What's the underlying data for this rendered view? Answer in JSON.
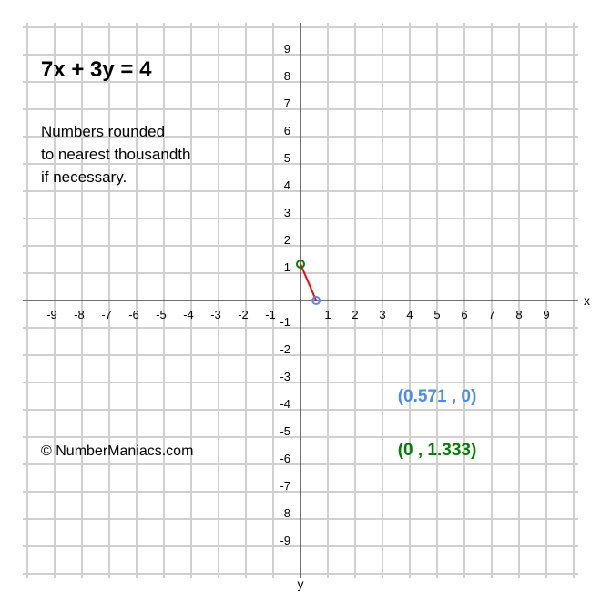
{
  "chart_data": {
    "type": "line",
    "title": "7x + 3y = 4",
    "note_lines": [
      "Numbers rounded",
      "to nearest thousandth",
      "if necessary."
    ],
    "copyright": "© NumberManiacs.com",
    "xlabel": "x",
    "ylabel": "y",
    "xlim": [
      -10,
      10
    ],
    "ylim": [
      -10,
      10
    ],
    "grid": true,
    "x_ticks": [
      "-9",
      "-8",
      "-7",
      "-6",
      "-5",
      "-4",
      "-3",
      "-2",
      "-1",
      "1",
      "2",
      "3",
      "4",
      "5",
      "6",
      "7",
      "8",
      "9"
    ],
    "y_ticks": [
      "9",
      "8",
      "7",
      "6",
      "5",
      "4",
      "3",
      "2",
      "1",
      "-1",
      "-2",
      "-3",
      "-4",
      "-5",
      "-6",
      "-7",
      "-8",
      "-9"
    ],
    "series": [
      {
        "points": [
          [
            0,
            1.333
          ],
          [
            0.571,
            0
          ]
        ],
        "color": "#ff0000"
      }
    ],
    "intercepts": [
      {
        "x": 0.571,
        "y": 0,
        "label": "(0.571 , 0)",
        "color": "#4a8cf0"
      },
      {
        "x": 0,
        "y": 1.333,
        "label": "(0 , 1.333)",
        "color": "#008000"
      }
    ]
  }
}
